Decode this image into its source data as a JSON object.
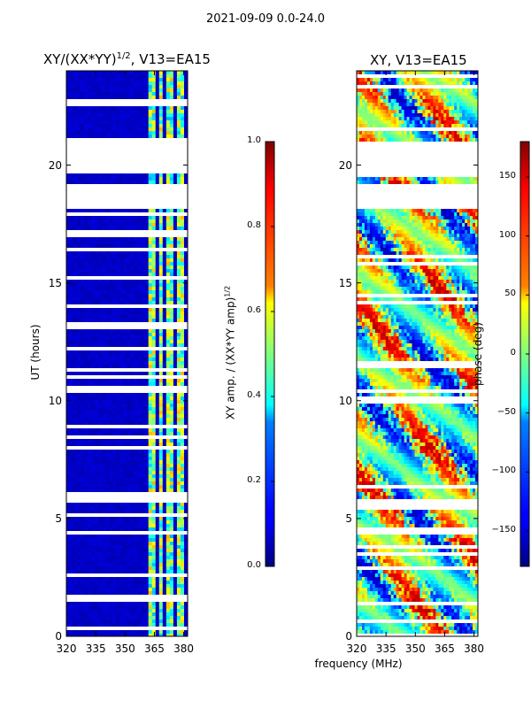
{
  "suptitle": "2021-09-09 0.0-24.0",
  "shared": {
    "xlabel": "frequency (MHz)",
    "ylabel": "UT (hours)",
    "x_ticks": [
      320,
      335,
      350,
      365,
      380
    ],
    "x_tick_labels": [
      "320",
      "335",
      "350",
      "365",
      "380"
    ],
    "xlim": [
      320,
      382
    ],
    "y_ticks": [
      0,
      5,
      10,
      15,
      20
    ],
    "y_tick_labels": [
      "0",
      "5",
      "10",
      "15",
      "20"
    ],
    "ylim": [
      0,
      24
    ]
  },
  "chart_data": [
    {
      "type": "heatmap",
      "title": "XY/(XX*YY)",
      "title_exp": "1/2",
      "title_suffix": ", V13=EA15",
      "xlabel": "frequency (MHz)",
      "ylabel": "UT (hours)",
      "colorbar_label": "XY amp. / (XX*YY amp)",
      "colorbar_label_exp": "1/2",
      "colorbar_range": [
        0.0,
        1.0
      ],
      "colorbar_ticks": [
        0.0,
        0.2,
        0.4,
        0.6,
        0.8,
        1.0
      ],
      "colorbar_tick_labels": [
        "0.0",
        "0.2",
        "0.4",
        "0.6",
        "0.8",
        "1.0"
      ],
      "colormap": "jet",
      "data_gaps_ut": [
        [
          18.1,
          19.2
        ],
        [
          19.7,
          21.0
        ]
      ],
      "bright_channel_bands_mhz": [
        [
          362,
          366
        ],
        [
          367,
          370
        ],
        [
          371,
          374
        ],
        [
          376,
          380
        ]
      ],
      "background_value": 0.05
    },
    {
      "type": "heatmap",
      "title": "XY, V13=EA15",
      "xlabel": "frequency (MHz)",
      "colorbar_label": "phase (deg)",
      "colorbar_range": [
        -180,
        180
      ],
      "colorbar_ticks": [
        -150,
        -100,
        -50,
        0,
        50,
        100,
        150
      ],
      "colorbar_tick_labels": [
        "−150",
        "−100",
        "−50",
        "0",
        "50",
        "100",
        "150"
      ],
      "colormap": "jet",
      "data_gaps_ut": [
        [
          18.1,
          19.2
        ],
        [
          19.7,
          21.0
        ]
      ]
    }
  ],
  "colors": {
    "gap": "#ffffff",
    "axis": "#000000",
    "jet_low": "#00007f",
    "jet_high": "#7f0000"
  }
}
